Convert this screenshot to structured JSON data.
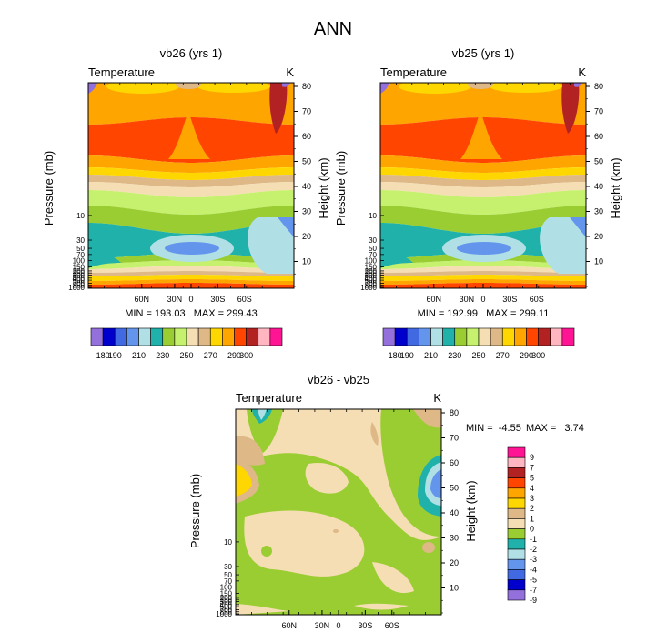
{
  "page_title": "ANN",
  "chart_data": [
    {
      "type": "heatmap",
      "title": "vb26 (yrs 1)",
      "field_label": "Temperature",
      "units": "K",
      "ylabel": "Pressure (mb)",
      "ylabel_right": "Height (km)",
      "x_ticks": [
        "60N",
        "30N",
        "0",
        "30S",
        "60S"
      ],
      "y_ticks": [
        "1000",
        "850",
        "700",
        "500",
        "400",
        "300",
        "250",
        "200",
        "150",
        "100",
        "70",
        "50",
        "30",
        "10"
      ],
      "y_ticks_right": [
        "10",
        "20",
        "30",
        "40",
        "50",
        "60",
        "70",
        "80"
      ],
      "stats": "MIN = 193.03   MAX = 299.43",
      "colorbar_labels": [
        "180",
        "190",
        "210",
        "230",
        "250",
        "270",
        "290",
        "300"
      ],
      "contour_levels": [
        180,
        185,
        190,
        200,
        210,
        220,
        230,
        240,
        250,
        260,
        270,
        280,
        290,
        295,
        300
      ],
      "range": [
        193.03,
        299.43
      ]
    },
    {
      "type": "heatmap",
      "title": "vb25 (yrs 1)",
      "field_label": "Temperature",
      "units": "K",
      "ylabel": "Pressure (mb)",
      "ylabel_right": "Height (km)",
      "x_ticks": [
        "60N",
        "30N",
        "0",
        "30S",
        "60S"
      ],
      "y_ticks": [
        "1000",
        "850",
        "700",
        "500",
        "400",
        "300",
        "250",
        "200",
        "150",
        "100",
        "70",
        "50",
        "30",
        "10"
      ],
      "y_ticks_right": [
        "10",
        "20",
        "30",
        "40",
        "50",
        "60",
        "70",
        "80"
      ],
      "stats": "MIN = 192.99   MAX = 299.11",
      "colorbar_labels": [
        "180",
        "190",
        "210",
        "230",
        "250",
        "270",
        "290",
        "300"
      ],
      "contour_levels": [
        180,
        185,
        190,
        200,
        210,
        220,
        230,
        240,
        250,
        260,
        270,
        280,
        290,
        295,
        300
      ],
      "range": [
        192.99,
        299.11
      ]
    },
    {
      "type": "heatmap",
      "title": "vb26 - vb25",
      "field_label": "Temperature",
      "units": "K",
      "ylabel": "Pressure (mb)",
      "ylabel_right": "Height (km)",
      "x_ticks": [
        "60N",
        "30N",
        "0",
        "30S",
        "60S"
      ],
      "y_ticks": [
        "1000",
        "850",
        "700",
        "500",
        "400",
        "300",
        "250",
        "200",
        "150",
        "100",
        "70",
        "50",
        "30",
        "10"
      ],
      "y_ticks_right": [
        "10",
        "20",
        "30",
        "40",
        "50",
        "60",
        "70",
        "80"
      ],
      "stats_min": "MIN =  -4.55",
      "stats_max": "MAX =   3.74",
      "colorbar_labels": [
        "9",
        "7",
        "5",
        "4",
        "3",
        "2",
        "1",
        "0",
        "-1",
        "-2",
        "-3",
        "-4",
        "-5",
        "-7",
        "-9"
      ],
      "range": [
        -4.55,
        3.74
      ]
    }
  ],
  "colors": {
    "abs_palette": [
      "#9370db",
      "#0000cd",
      "#4169e1",
      "#6495ed",
      "#b0e0e6",
      "#20b2aa",
      "#9acd32",
      "#c6f16f",
      "#f5deb3",
      "#deb887",
      "#ffd700",
      "#ffa500",
      "#ff4500",
      "#b22222",
      "#ffb6c1",
      "#ff1493"
    ],
    "diff_palette": [
      "#ff1493",
      "#ffb6c1",
      "#b22222",
      "#ff4500",
      "#ffa500",
      "#ffd700",
      "#deb887",
      "#f5deb3",
      "#9acd32",
      "#20b2aa",
      "#b0e0e6",
      "#6495ed",
      "#4169e1",
      "#0000cd",
      "#9370db"
    ]
  }
}
